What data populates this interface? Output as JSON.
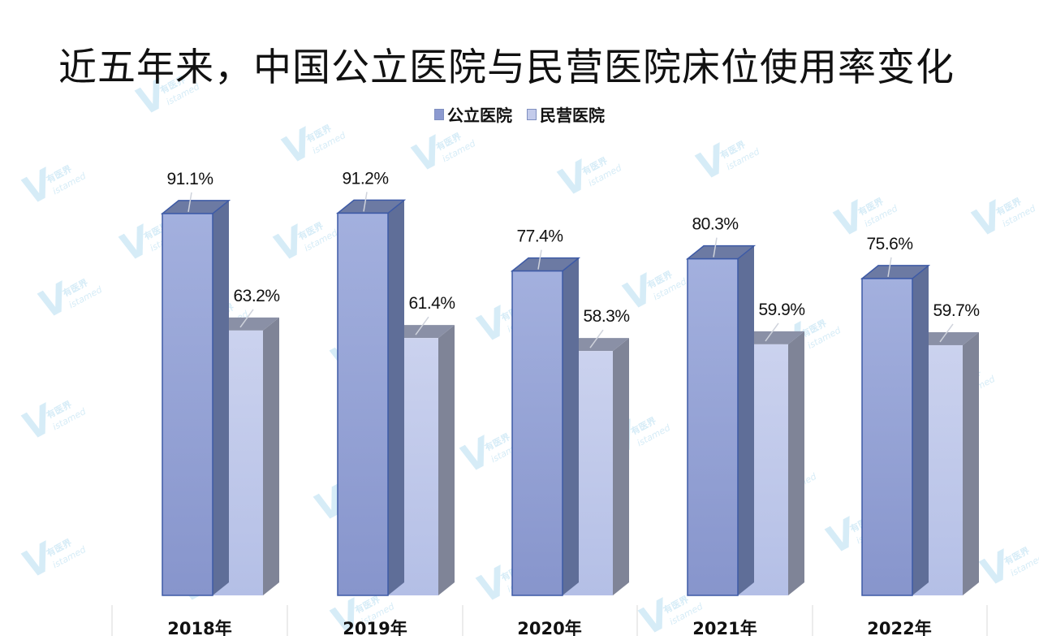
{
  "title": "近五年来，中国公立医院与民营医院床位使用率变化",
  "legend": [
    {
      "label": "公立医院",
      "color": "#8c9ad0"
    },
    {
      "label": "民营医院",
      "color": "#c3cbeb"
    }
  ],
  "watermark": "Vistamed 有医界",
  "colors": {
    "public_front": "#93a2d6",
    "public_side": "#5f6e98",
    "public_top": "#6c7aa3",
    "public_edge": "#3d5aa6",
    "private_front": "#c3cbea",
    "private_side": "#7f8497",
    "private_top": "#8a90a6"
  },
  "chart_data": {
    "type": "bar",
    "title": "近五年来，中国公立医院与民营医院床位使用率变化",
    "categories": [
      "2018年",
      "2019年",
      "2020年",
      "2021年",
      "2022年"
    ],
    "series": [
      {
        "name": "公立医院",
        "values": [
          91.1,
          91.2,
          77.4,
          80.3,
          75.6
        ]
      },
      {
        "name": "民营医院",
        "values": [
          63.2,
          61.4,
          58.3,
          59.9,
          59.7
        ]
      }
    ],
    "data_labels": [
      [
        "91.1%",
        "91.2%",
        "77.4%",
        "80.3%",
        "75.6%"
      ],
      [
        "63.2%",
        "61.4%",
        "58.3%",
        "59.9%",
        "59.7%"
      ]
    ],
    "xlabel": "",
    "ylabel": "",
    "ylim": [
      0,
      100
    ],
    "grid": false,
    "legend_position": "top",
    "style": "3d-clustered-column"
  }
}
